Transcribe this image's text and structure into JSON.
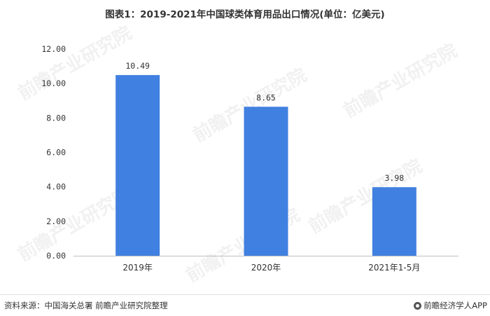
{
  "chart_data": {
    "type": "bar",
    "title": "图表1：2019-2021年中国球类体育用品出口情况(单位：亿美元)",
    "categories": [
      "2019年",
      "2020年",
      "2021年1-5月"
    ],
    "values": [
      10.49,
      8.65,
      3.98
    ],
    "value_labels": [
      "10.49",
      "8.65",
      "3.98"
    ],
    "yticks": [
      "0.00",
      "2.00",
      "4.00",
      "6.00",
      "8.00",
      "10.00",
      "12.00"
    ],
    "ylim": [
      0,
      12
    ],
    "grid": false,
    "legend": "none",
    "bar_color": "#4080e0"
  },
  "watermark": "前瞻产业研究院",
  "footer": {
    "source": "资料来源：中国海关总署 前瞻产业研究院整理",
    "brand": "前瞻经济学人APP",
    "brand_icon": "qianzhan-logo-icon"
  }
}
